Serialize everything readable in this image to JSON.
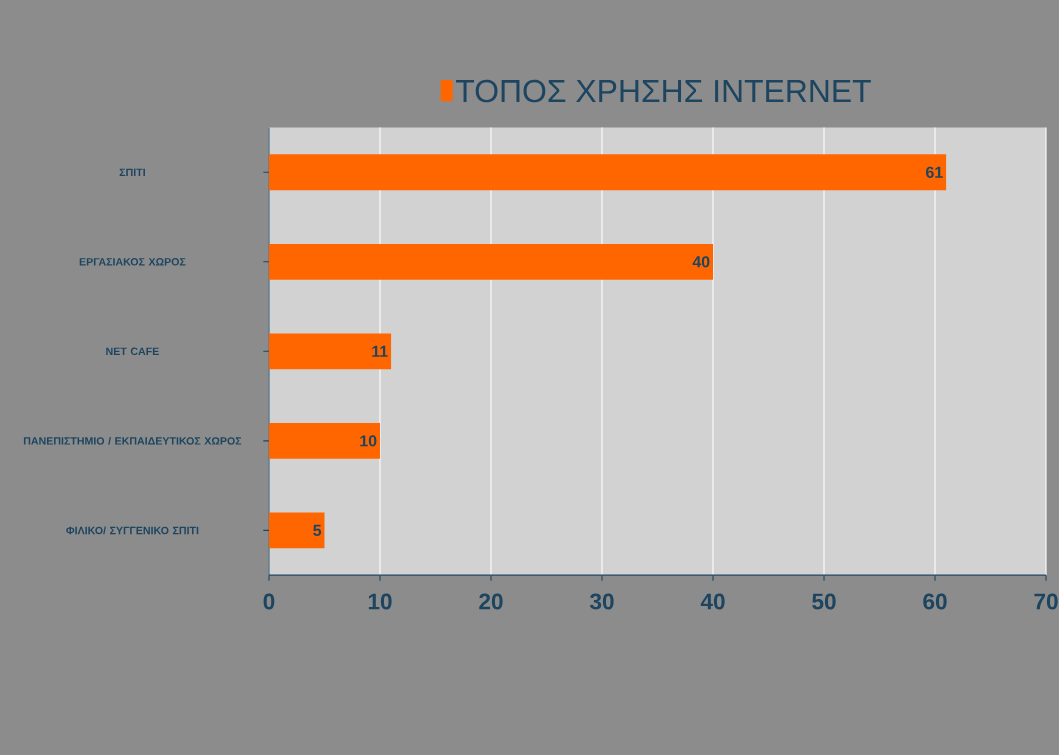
{
  "chart_data": {
    "type": "bar",
    "orientation": "horizontal",
    "categories": [
      "ΣΠΙΤΙ",
      "ΕΡΓΑΣΙΑΚΟΣ ΧΩΡΟΣ",
      "NET CAFE",
      "ΠΑΝΕΠΙΣΤΗΜΙΟ / ΕΚΠΑΙΔΕΥΤΙΚΟΣ ΧΩΡΟΣ",
      "ΦΙΛΙΚΟ/ ΣΥΓΓΕΝΙΚΟ ΣΠΙΤΙ"
    ],
    "series": [
      {
        "name": "ΤΟΠΟΣ ΧΡΗΣΗΣ INTERNET",
        "color": "#ff6600",
        "values": [
          61,
          40,
          11,
          10,
          5
        ]
      }
    ],
    "xlim": [
      0,
      70
    ],
    "xticks": [
      0,
      10,
      20,
      30,
      40,
      50,
      60,
      70
    ],
    "grid": "x",
    "legend": "top",
    "data_labels": true
  }
}
